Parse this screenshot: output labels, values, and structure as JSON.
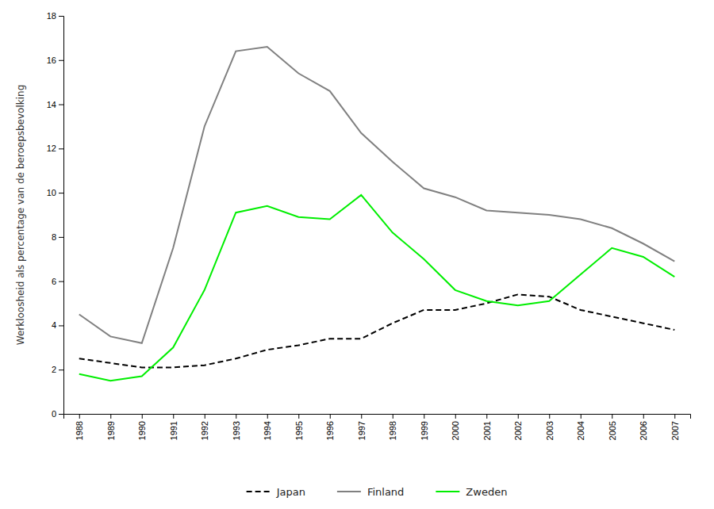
{
  "chart_data": {
    "type": "line",
    "y_label": "Werkloosheid als percentage van de beroepsbevolking",
    "x": [
      1988,
      1989,
      1990,
      1991,
      1992,
      1993,
      1994,
      1995,
      1996,
      1997,
      1998,
      1999,
      2000,
      2001,
      2002,
      2003,
      2004,
      2005,
      2006,
      2007
    ],
    "xlim": [
      1987.5,
      2007.5
    ],
    "xticks": [
      1988,
      1989,
      1990,
      1991,
      1992,
      1993,
      1994,
      1995,
      1996,
      1997,
      1998,
      1999,
      2000,
      2001,
      2002,
      2003,
      2004,
      2005,
      2006,
      2007
    ],
    "ylim": [
      0,
      18
    ],
    "yticks": [
      0,
      2,
      4,
      6,
      8,
      10,
      12,
      14,
      16,
      18
    ],
    "grid": false,
    "legend": "bottom",
    "series": [
      {
        "name": "Japan",
        "color": "#000000",
        "line_style": "dashed",
        "values": [
          2.5,
          2.3,
          2.1,
          2.1,
          2.2,
          2.5,
          2.9,
          3.1,
          3.4,
          3.4,
          4.1,
          4.7,
          4.7,
          5.0,
          5.4,
          5.3,
          4.7,
          4.4,
          4.1,
          3.8
        ]
      },
      {
        "name": "Finland",
        "color": "#808080",
        "line_style": "solid",
        "values": [
          4.5,
          3.5,
          3.2,
          7.5,
          13.0,
          16.4,
          16.6,
          15.4,
          14.6,
          12.7,
          11.4,
          10.2,
          9.8,
          9.2,
          9.1,
          9.0,
          8.8,
          8.4,
          7.7,
          6.9
        ]
      },
      {
        "name": "Zweden",
        "color": "#00ee00",
        "line_style": "solid",
        "values": [
          1.8,
          1.5,
          1.7,
          3.0,
          5.6,
          9.1,
          9.4,
          8.9,
          8.8,
          9.9,
          8.2,
          7.0,
          5.6,
          5.1,
          4.9,
          5.1,
          6.3,
          7.5,
          7.1,
          6.2
        ]
      }
    ]
  }
}
